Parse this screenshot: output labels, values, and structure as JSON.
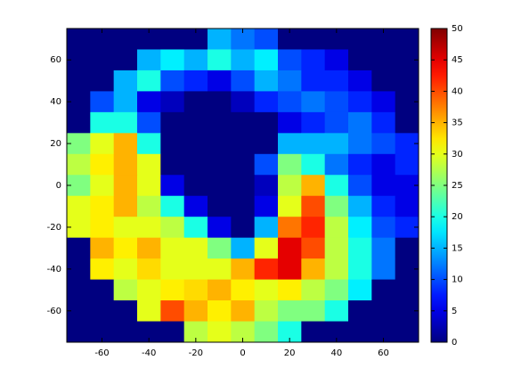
{
  "chart_data": {
    "type": "heatmap",
    "colormap": "jet",
    "x": [
      -70,
      -60,
      -50,
      -40,
      -30,
      -20,
      -10,
      0,
      10,
      20,
      30,
      40,
      50,
      60,
      70
    ],
    "y": [
      70,
      60,
      50,
      40,
      30,
      20,
      10,
      0,
      -10,
      -20,
      -30,
      -40,
      -50,
      -60,
      -70
    ],
    "z": [
      [
        0,
        0,
        0,
        0,
        0,
        0,
        15,
        12,
        10,
        0,
        0,
        0,
        0,
        0,
        0
      ],
      [
        0,
        0,
        0,
        15,
        18,
        15,
        20,
        15,
        18,
        10,
        8,
        5,
        0,
        0,
        0
      ],
      [
        0,
        0,
        15,
        20,
        10,
        8,
        5,
        10,
        15,
        12,
        8,
        8,
        5,
        0,
        0
      ],
      [
        0,
        10,
        15,
        5,
        3,
        0,
        0,
        3,
        8,
        10,
        12,
        10,
        8,
        5,
        0
      ],
      [
        0,
        20,
        20,
        10,
        0,
        0,
        0,
        0,
        0,
        5,
        8,
        10,
        12,
        8,
        0
      ],
      [
        25,
        30,
        35,
        20,
        0,
        0,
        0,
        0,
        0,
        15,
        15,
        15,
        12,
        10,
        8
      ],
      [
        28,
        32,
        35,
        30,
        0,
        0,
        0,
        0,
        10,
        25,
        20,
        12,
        8,
        5,
        8
      ],
      [
        25,
        30,
        35,
        30,
        5,
        0,
        0,
        0,
        3,
        28,
        35,
        20,
        10,
        5,
        5
      ],
      [
        30,
        32,
        35,
        28,
        20,
        5,
        0,
        0,
        5,
        30,
        40,
        25,
        15,
        8,
        5
      ],
      [
        30,
        32,
        30,
        30,
        28,
        20,
        5,
        0,
        15,
        38,
        42,
        28,
        18,
        10,
        8
      ],
      [
        0,
        35,
        32,
        35,
        30,
        30,
        25,
        15,
        30,
        45,
        40,
        28,
        20,
        12,
        0
      ],
      [
        0,
        32,
        30,
        33,
        30,
        30,
        30,
        35,
        42,
        45,
        35,
        28,
        20,
        12,
        0
      ],
      [
        0,
        0,
        28,
        30,
        32,
        33,
        35,
        32,
        30,
        32,
        28,
        25,
        18,
        0,
        0
      ],
      [
        0,
        0,
        0,
        30,
        40,
        35,
        32,
        35,
        28,
        25,
        25,
        20,
        0,
        0,
        0
      ],
      [
        0,
        0,
        0,
        0,
        0,
        28,
        30,
        28,
        25,
        20,
        0,
        0,
        0,
        0,
        0
      ]
    ],
    "xlim": [
      -75,
      75
    ],
    "ylim": [
      -75,
      75
    ],
    "xticks": [
      -60,
      -40,
      -20,
      0,
      20,
      40,
      60
    ],
    "yticks": [
      -60,
      -40,
      -20,
      0,
      20,
      40,
      60
    ],
    "clim": [
      0,
      50
    ],
    "cticks": [
      0,
      5,
      10,
      15,
      20,
      25,
      30,
      35,
      40,
      45,
      50
    ]
  }
}
